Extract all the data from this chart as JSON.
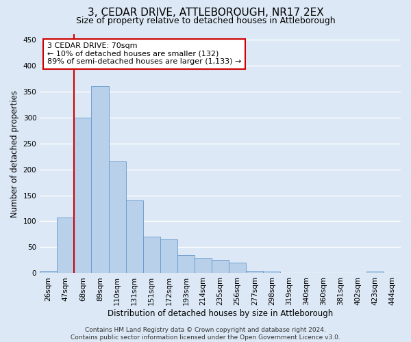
{
  "title": "3, CEDAR DRIVE, ATTLEBOROUGH, NR17 2EX",
  "subtitle": "Size of property relative to detached houses in Attleborough",
  "xlabel": "Distribution of detached houses by size in Attleborough",
  "ylabel": "Number of detached properties",
  "bar_color": "#b8d0ea",
  "bar_edge_color": "#6699cc",
  "categories": [
    "26sqm",
    "47sqm",
    "68sqm",
    "89sqm",
    "110sqm",
    "131sqm",
    "151sqm",
    "172sqm",
    "193sqm",
    "214sqm",
    "235sqm",
    "256sqm",
    "277sqm",
    "298sqm",
    "319sqm",
    "340sqm",
    "360sqm",
    "381sqm",
    "402sqm",
    "423sqm",
    "444sqm"
  ],
  "values": [
    5,
    107,
    300,
    360,
    215,
    140,
    70,
    65,
    35,
    30,
    25,
    20,
    5,
    3,
    1,
    1,
    0,
    0,
    1,
    3,
    1
  ],
  "ylim": [
    0,
    460
  ],
  "yticks": [
    0,
    50,
    100,
    150,
    200,
    250,
    300,
    350,
    400,
    450
  ],
  "property_line_index": 1.5,
  "annotation_text": "3 CEDAR DRIVE: 70sqm\n← 10% of detached houses are smaller (132)\n89% of semi-detached houses are larger (1,133) →",
  "annotation_box_facecolor": "#ffffff",
  "annotation_box_edgecolor": "#cc0000",
  "property_line_color": "#cc0000",
  "fig_facecolor": "#dce8f5",
  "axes_facecolor": "#dce8f5",
  "grid_color": "#ffffff",
  "title_fontsize": 11,
  "subtitle_fontsize": 9,
  "xlabel_fontsize": 8.5,
  "ylabel_fontsize": 8.5,
  "tick_fontsize": 7.5,
  "annotation_fontsize": 8,
  "footer_fontsize": 6.5,
  "footer_text": "Contains HM Land Registry data © Crown copyright and database right 2024.\nContains public sector information licensed under the Open Government Licence v3.0."
}
